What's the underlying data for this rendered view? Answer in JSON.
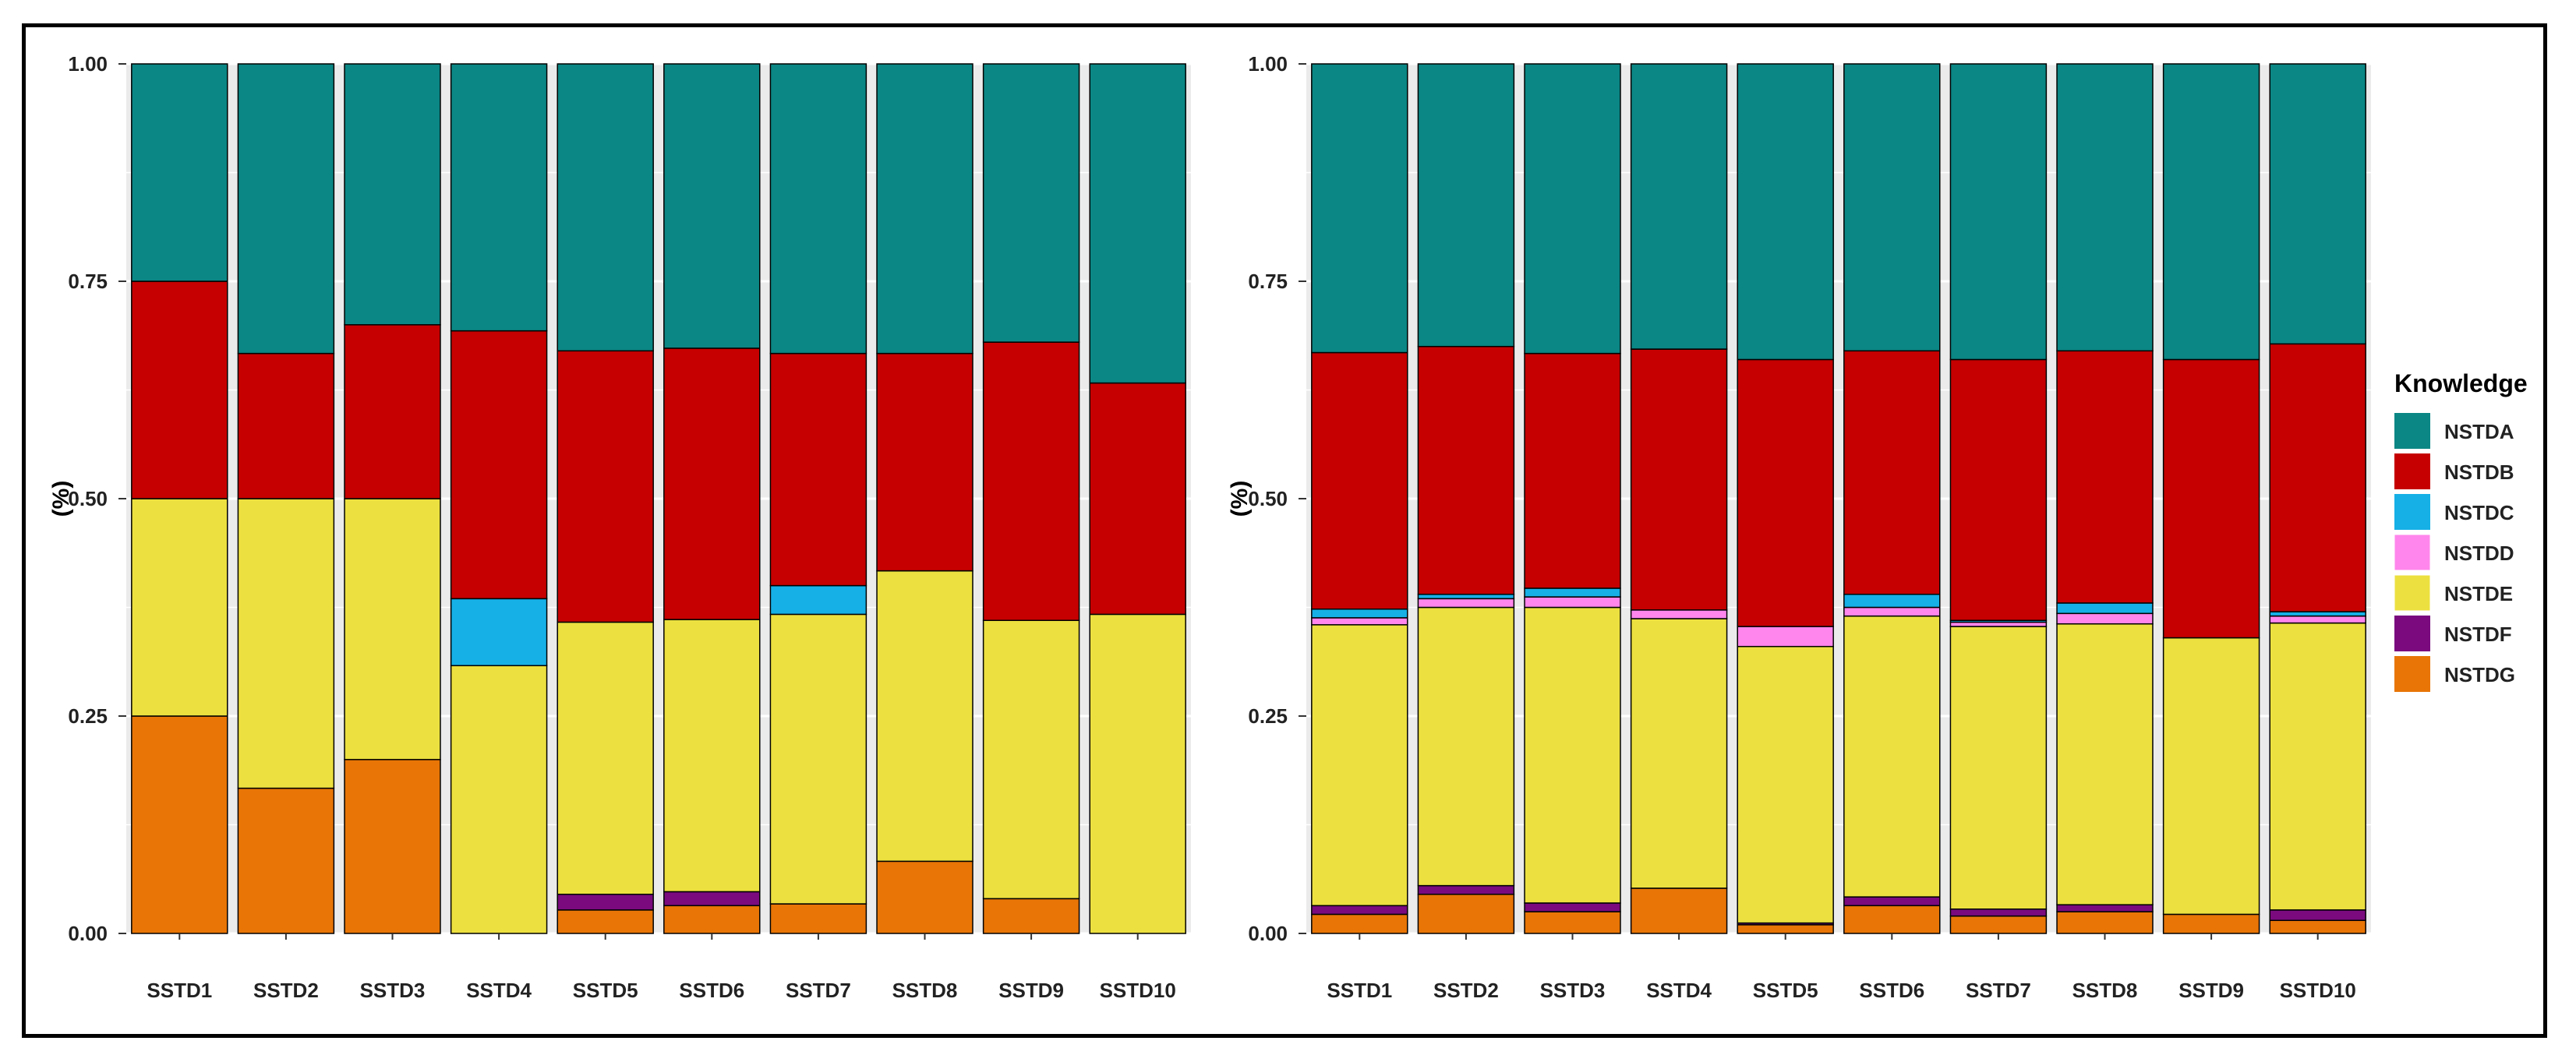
{
  "chart_data": [
    {
      "type": "bar",
      "stacked": true,
      "title": "",
      "xlabel": "",
      "ylabel": "(%)",
      "ylim": [
        0,
        1
      ],
      "yticks": [
        "0.00",
        "0.25",
        "0.50",
        "0.75",
        "1.00"
      ],
      "categories": [
        "SSTD1",
        "SSTD2",
        "SSTD3",
        "SSTD4",
        "SSTD5",
        "SSTD6",
        "SSTD7",
        "SSTD8",
        "SSTD9",
        "SSTD10"
      ],
      "series": [
        {
          "name": "NSTDG",
          "values": [
            0.25,
            0.167,
            0.2,
            0.0,
            0.027,
            0.032,
            0.034,
            0.083,
            0.04,
            0.0
          ]
        },
        {
          "name": "NSTDF",
          "values": [
            0.0,
            0.0,
            0.0,
            0.0,
            0.018,
            0.016,
            0.0,
            0.0,
            0.0,
            0.0
          ]
        },
        {
          "name": "NSTDE",
          "values": [
            0.25,
            0.333,
            0.3,
            0.308,
            0.313,
            0.313,
            0.333,
            0.334,
            0.32,
            0.367
          ]
        },
        {
          "name": "NSTDD",
          "values": [
            0.0,
            0.0,
            0.0,
            0.0,
            0.0,
            0.0,
            0.0,
            0.0,
            0.0,
            0.0
          ]
        },
        {
          "name": "NSTDC",
          "values": [
            0.0,
            0.0,
            0.0,
            0.077,
            0.0,
            0.0,
            0.033,
            0.0,
            0.0,
            0.0
          ]
        },
        {
          "name": "NSTDB",
          "values": [
            0.25,
            0.167,
            0.2,
            0.308,
            0.312,
            0.312,
            0.267,
            0.25,
            0.32,
            0.266
          ]
        },
        {
          "name": "NSTDA",
          "values": [
            0.25,
            0.333,
            0.3,
            0.307,
            0.33,
            0.327,
            0.333,
            0.333,
            0.32,
            0.367
          ]
        }
      ]
    },
    {
      "type": "bar",
      "stacked": true,
      "title": "",
      "xlabel": "",
      "ylabel": "(%)",
      "ylim": [
        0,
        1
      ],
      "yticks": [
        "0.00",
        "0.25",
        "0.50",
        "0.75",
        "1.00"
      ],
      "categories": [
        "SSTD1",
        "SSTD2",
        "SSTD3",
        "SSTD4",
        "SSTD5",
        "SSTD6",
        "SSTD7",
        "SSTD8",
        "SSTD9",
        "SSTD10"
      ],
      "series": [
        {
          "name": "NSTDG",
          "values": [
            0.022,
            0.045,
            0.025,
            0.052,
            0.01,
            0.032,
            0.02,
            0.025,
            0.022,
            0.015
          ]
        },
        {
          "name": "NSTDF",
          "values": [
            0.01,
            0.01,
            0.01,
            0.0,
            0.002,
            0.01,
            0.008,
            0.008,
            0.0,
            0.012
          ]
        },
        {
          "name": "NSTDE",
          "values": [
            0.323,
            0.32,
            0.34,
            0.31,
            0.318,
            0.323,
            0.325,
            0.323,
            0.318,
            0.33
          ]
        },
        {
          "name": "NSTDD",
          "values": [
            0.008,
            0.01,
            0.012,
            0.01,
            0.023,
            0.01,
            0.005,
            0.012,
            0.0,
            0.008
          ]
        },
        {
          "name": "NSTDC",
          "values": [
            0.01,
            0.005,
            0.01,
            0.0,
            0.0,
            0.015,
            0.002,
            0.012,
            0.0,
            0.005
          ]
        },
        {
          "name": "NSTDB",
          "values": [
            0.295,
            0.285,
            0.27,
            0.3,
            0.307,
            0.28,
            0.3,
            0.29,
            0.32,
            0.308
          ]
        },
        {
          "name": "NSTDA",
          "values": [
            0.332,
            0.325,
            0.333,
            0.328,
            0.34,
            0.33,
            0.34,
            0.33,
            0.34,
            0.322
          ]
        }
      ]
    }
  ],
  "legend": {
    "title": "Knowledge",
    "items": [
      "NSTDA",
      "NSTDB",
      "NSTDC",
      "NSTDD",
      "NSTDE",
      "NSTDF",
      "NSTDG"
    ]
  },
  "colors": {
    "NSTDA": "#0b8785",
    "NSTDB": "#c60000",
    "NSTDC": "#16b0e6",
    "NSTDD": "#ff86ec",
    "NSTDE": "#ece040",
    "NSTDF": "#7a0a7e",
    "NSTDG": "#e87506",
    "panel_bg": "#ebebeb",
    "grid": "#ffffff"
  }
}
